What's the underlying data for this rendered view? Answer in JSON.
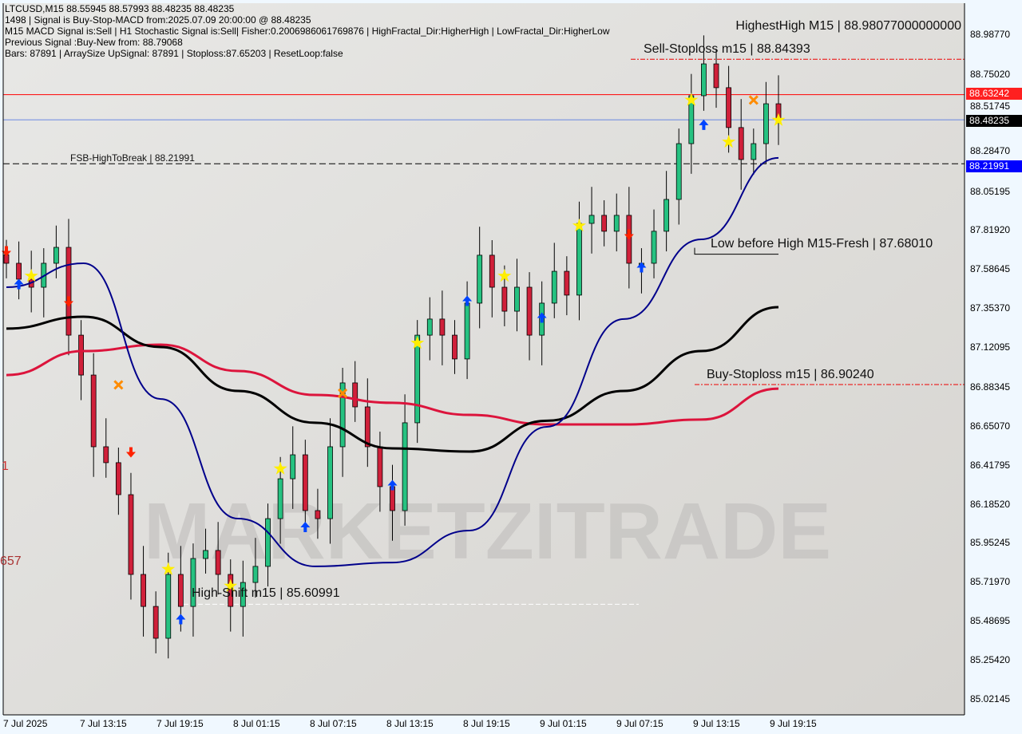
{
  "header": {
    "line1": "LTCUSD,M15  88.55945 88.57993 88.48235 88.48235",
    "line2": "1498 | Signal is Buy-Stop-MACD from:2025.07.09 20:00:00 @ 88.48235",
    "line3": "M15 MACD Signal is:Sell | H1 Stochastic Signal is:Sell| Fisher:0.2006986061769876 | HighFractal_Dir:HigherHigh | LowFractal_Dir:HigherLow",
    "line4": "Previous Signal :Buy-New from: 88.79068",
    "line5": "Bars: 87891 | ArraySize UpSignal: 87891 | Stoploss:87.65203 | ResetLoop:false"
  },
  "annotations": {
    "highest_high": "HighestHigh    M15 | 88.98077000000000",
    "sell_stoploss": "Sell-Stoploss m15 | 88.84393",
    "fsb": "FSB-HighToBreak | 88.21991",
    "low_before_high": "Low before High    M15-Fresh | 87.68010",
    "buy_stoploss": "Buy-Stoploss m15 | 86.90240",
    "high_shift": "High-Shift m15 | 85.60991",
    "left_1": "1",
    "left_657": "657",
    "watermark": "MARKETZITRADE"
  },
  "colors": {
    "bull": "#26c281",
    "bear": "#d0203a",
    "ma_fast": "#00008b",
    "ma_slow": "#000000",
    "ma_long": "#dc143c",
    "stop": "#ff0000",
    "bid": "#4169e1",
    "buy_arrow": "#0044ff",
    "sell_arrow": "#ff2200",
    "star": "#ffee00"
  },
  "chart_data": {
    "type": "candlestick",
    "symbol": "LTCUSD",
    "timeframe": "M15",
    "ylim": [
      85.0,
      89.0
    ],
    "y_ticks": [
      "88.98770",
      "88.75020",
      "88.51745",
      "88.28470",
      "88.05195",
      "87.81920",
      "87.58645",
      "87.35370",
      "87.12095",
      "86.88345",
      "86.65070",
      "86.41795",
      "86.18520",
      "85.95245",
      "85.71970",
      "85.48695",
      "85.25420",
      "85.02145"
    ],
    "x_ticks": [
      "7 Jul 2025",
      "7 Jul 13:15",
      "7 Jul 19:15",
      "8 Jul 01:15",
      "8 Jul 07:15",
      "8 Jul 13:15",
      "8 Jul 19:15",
      "9 Jul 01:15",
      "9 Jul 07:15",
      "9 Jul 13:15",
      "9 Jul 19:15"
    ],
    "closes": [
      87.626,
      87.531,
      87.483,
      87.626,
      87.721,
      87.197,
      86.959,
      86.531,
      86.436,
      86.245,
      85.769,
      85.578,
      85.388,
      85.769,
      85.578,
      85.864,
      85.912,
      85.769,
      85.578,
      85.721,
      85.817,
      86.102,
      86.34,
      86.483,
      86.15,
      86.102,
      86.531,
      86.912,
      86.769,
      86.531,
      86.293,
      86.15,
      86.674,
      87.197,
      87.293,
      87.197,
      87.055,
      87.388,
      87.674,
      87.483,
      87.34,
      87.483,
      87.197,
      87.388,
      87.578,
      87.436,
      87.864,
      87.912,
      87.817,
      87.912,
      87.626,
      87.626,
      87.817,
      88.007,
      88.34,
      88.626,
      88.816,
      88.674,
      88.436,
      88.245,
      88.34,
      88.578,
      88.482
    ],
    "ma_fast": [
      87.483,
      87.626,
      86.816,
      86.102,
      85.817,
      85.84,
      86.031,
      86.65,
      87.293,
      87.769,
      88.255
    ],
    "ma_slow": [
      87.236,
      87.307,
      87.126,
      86.864,
      86.674,
      86.521,
      86.502,
      86.686,
      86.864,
      87.102,
      87.364
    ],
    "ma_long": [
      86.959,
      87.102,
      87.14,
      86.983,
      86.84,
      86.793,
      86.721,
      86.664,
      86.664,
      86.693,
      86.878
    ],
    "levels": {
      "last_price": {
        "value": 88.48235,
        "label": "88.48235"
      },
      "stop_line": {
        "value": 88.63242,
        "label": "88.63242"
      },
      "fsb_high": {
        "value": 88.21991,
        "label": "88.21991"
      },
      "sell_stoploss": 88.84393,
      "buy_stoploss": 86.9024,
      "low_before_high": 87.6801,
      "high_shift": 85.60991
    },
    "markers": [
      {
        "i": 0,
        "type": "sell",
        "price": 87.7
      },
      {
        "i": 1,
        "type": "buy",
        "price": 87.5
      },
      {
        "i": 2,
        "type": "star",
        "price": 87.55
      },
      {
        "i": 5,
        "type": "sell",
        "price": 87.4
      },
      {
        "i": 9,
        "type": "cross",
        "price": 86.9
      },
      {
        "i": 10,
        "type": "sell",
        "price": 86.5
      },
      {
        "i": 13,
        "type": "star",
        "price": 85.8
      },
      {
        "i": 14,
        "type": "buy",
        "price": 85.5
      },
      {
        "i": 18,
        "type": "star",
        "price": 85.7
      },
      {
        "i": 22,
        "type": "star",
        "price": 86.4
      },
      {
        "i": 24,
        "type": "buy",
        "price": 86.05
      },
      {
        "i": 27,
        "type": "cross",
        "price": 86.85
      },
      {
        "i": 31,
        "type": "buy",
        "price": 86.3
      },
      {
        "i": 33,
        "type": "star",
        "price": 87.15
      },
      {
        "i": 37,
        "type": "buy",
        "price": 87.4
      },
      {
        "i": 40,
        "type": "star",
        "price": 87.55
      },
      {
        "i": 43,
        "type": "buy",
        "price": 87.3
      },
      {
        "i": 46,
        "type": "star",
        "price": 87.85
      },
      {
        "i": 50,
        "type": "sell",
        "price": 87.8
      },
      {
        "i": 51,
        "type": "buy",
        "price": 87.6
      },
      {
        "i": 55,
        "type": "star",
        "price": 88.6
      },
      {
        "i": 56,
        "type": "buy",
        "price": 88.45
      },
      {
        "i": 58,
        "type": "star",
        "price": 88.35
      },
      {
        "i": 60,
        "type": "cross",
        "price": 88.6
      },
      {
        "i": 62,
        "type": "star",
        "price": 88.48
      }
    ]
  }
}
